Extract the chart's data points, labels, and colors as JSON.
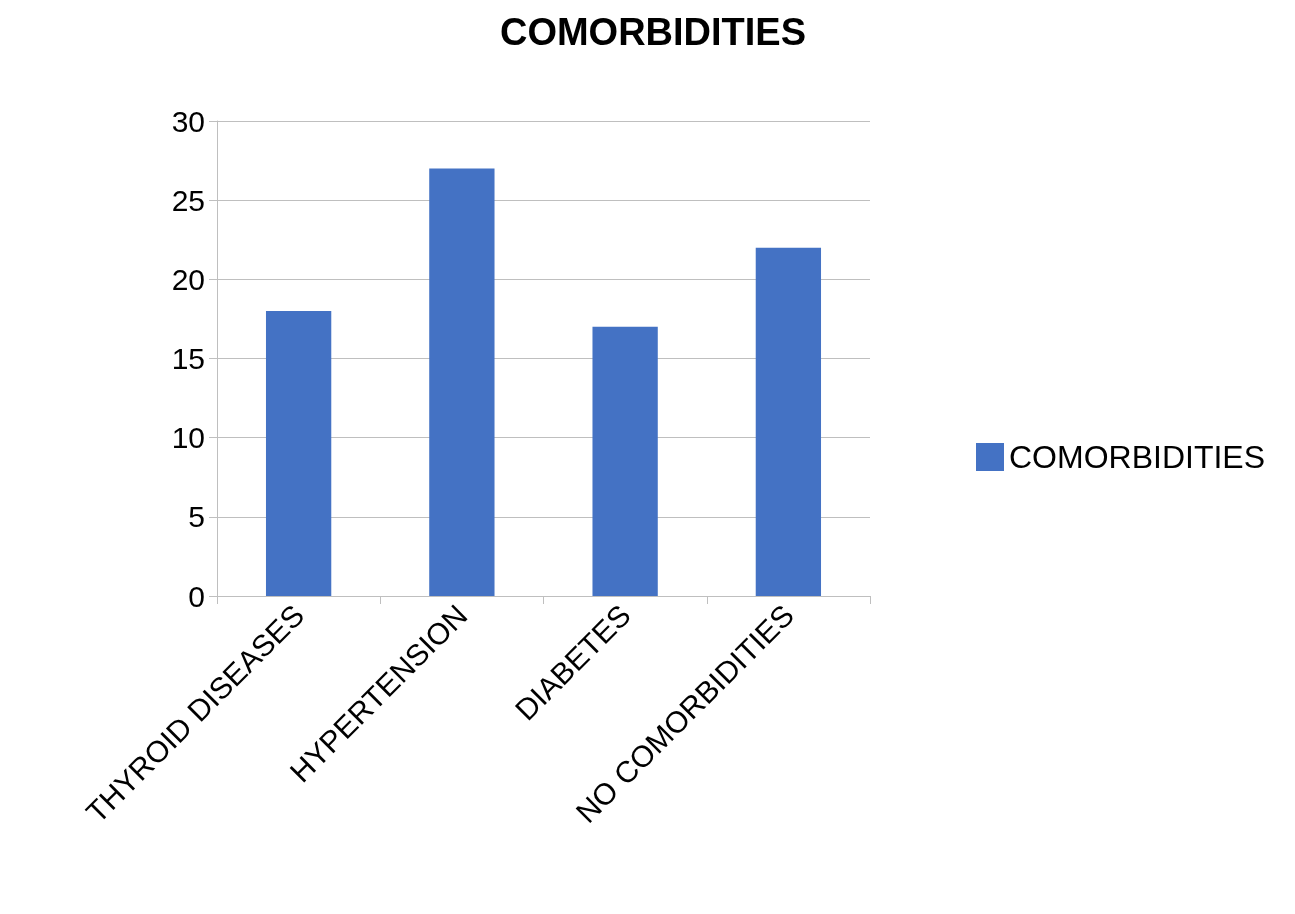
{
  "chart_data": {
    "type": "bar",
    "title": "COMORBIDITIES",
    "categories": [
      "THYROID DISEASES",
      "HYPERTENSION",
      "DIABETES",
      "NO COMORBIDITIES"
    ],
    "series": [
      {
        "name": "COMORBIDITIES",
        "color": "#4472c4",
        "values": [
          18,
          27,
          17,
          22
        ]
      }
    ],
    "ylim": [
      0,
      30
    ],
    "yticks": [
      0,
      5,
      10,
      15,
      20,
      25,
      30
    ],
    "grid": "y",
    "legend": "right"
  }
}
